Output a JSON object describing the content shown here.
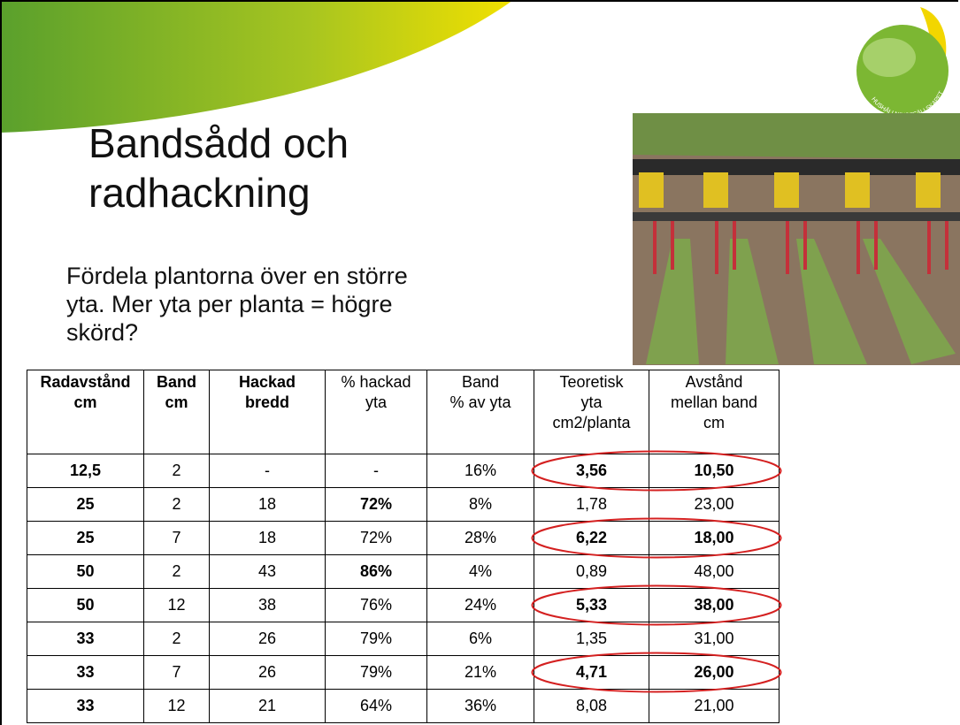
{
  "slide": {
    "title": [
      "Bandsådd och",
      "radhackning"
    ],
    "body": [
      "Fördela plantorna över en större",
      "yta. Mer yta per planta = högre",
      "skörd?"
    ],
    "logo_text": "HUSHÅLLNINGSSÄLLSKAPET",
    "table": {
      "header": [
        [
          "Radavstånd",
          "cm"
        ],
        [
          "Band",
          "cm"
        ],
        [
          "Hackad",
          "bredd"
        ],
        [
          "% hackad",
          "yta"
        ],
        [
          "Band",
          "% av yta"
        ],
        [
          "Teoretisk",
          "yta",
          "cm2/planta"
        ],
        [
          "Avstånd",
          "mellan band",
          "cm"
        ]
      ],
      "rows": [
        [
          "12,5",
          "2",
          "-",
          "-",
          "16%",
          "3,56",
          "10,50"
        ],
        [
          "25",
          "2",
          "18",
          "72%",
          "8%",
          "1,78",
          "23,00"
        ],
        [
          "25",
          "7",
          "18",
          "72%",
          "28%",
          "6,22",
          "18,00"
        ],
        [
          "50",
          "2",
          "43",
          "86%",
          "4%",
          "0,89",
          "48,00"
        ],
        [
          "50",
          "12",
          "38",
          "76%",
          "24%",
          "5,33",
          "38,00"
        ],
        [
          "33",
          "2",
          "26",
          "79%",
          "6%",
          "1,35",
          "31,00"
        ],
        [
          "33",
          "7",
          "26",
          "79%",
          "21%",
          "4,71",
          "26,00"
        ],
        [
          "33",
          "12",
          "21",
          "64%",
          "36%",
          "8,08",
          "21,00"
        ]
      ]
    }
  }
}
